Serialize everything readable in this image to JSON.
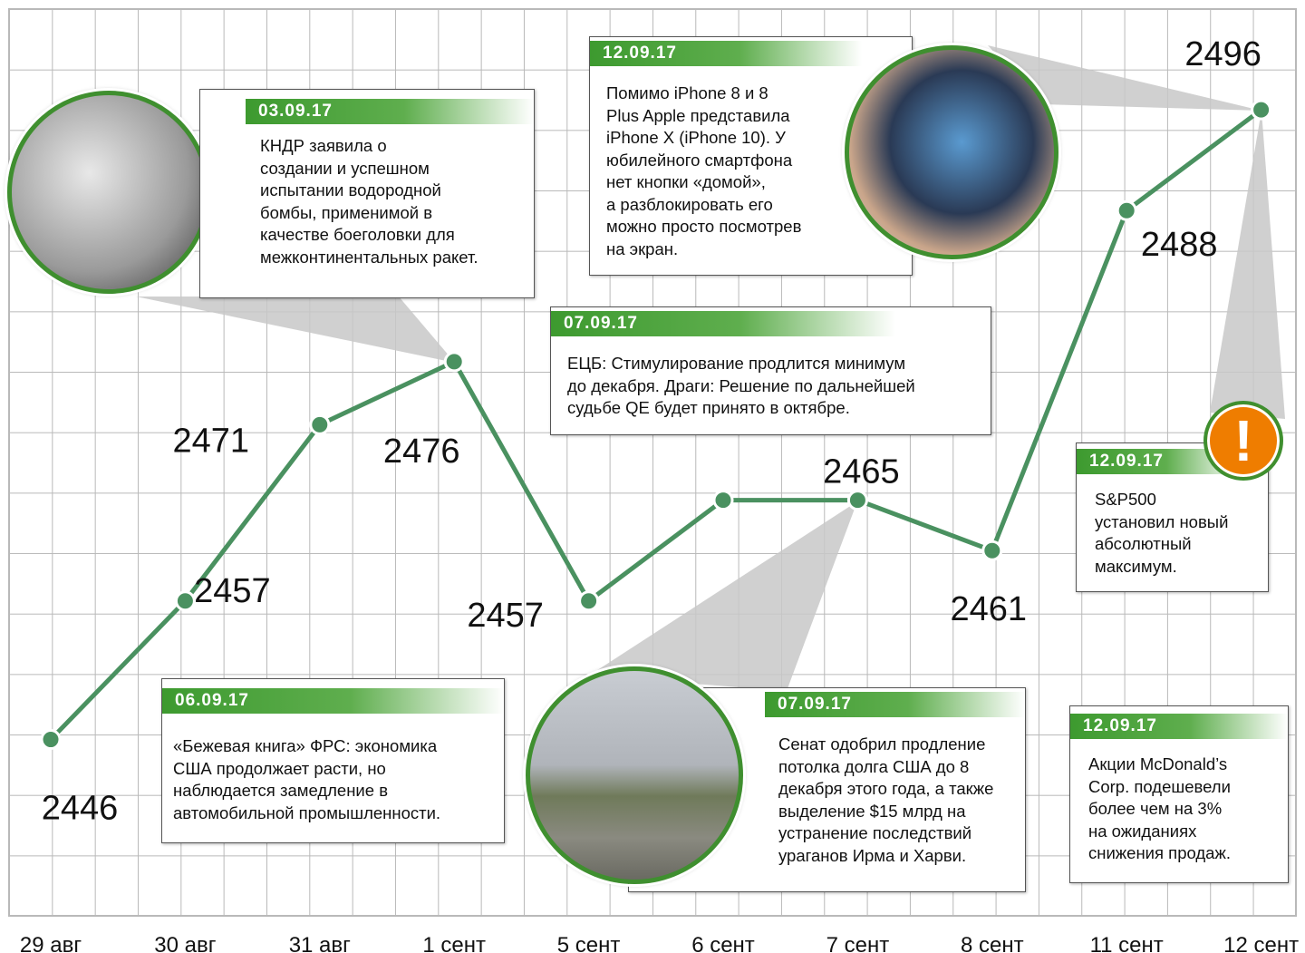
{
  "chart_data": {
    "type": "line",
    "categories": [
      "29 авг",
      "30 авг",
      "31 авг",
      "1 сент",
      "5 сент",
      "6 сент",
      "7 сент",
      "8 сент",
      "11 сент",
      "12 сент"
    ],
    "values": [
      2446,
      2457,
      2471,
      2476,
      2457,
      2465,
      2465,
      2461,
      2488,
      2496
    ],
    "value_labels": [
      "2446",
      "2457",
      "2471",
      "2476",
      "2457",
      null,
      "2465",
      "2461",
      "2488",
      "2496"
    ],
    "color": "#4a9160",
    "ylim": [
      2432,
      2504
    ],
    "grid": true,
    "annotations": [
      {
        "date": "03.09.17",
        "text": "КНДР заявила о\nсоздании и успешном\nиспытании водородной\nбомбы, применимой в\nкачестве боеголовки для\nмежконтинентальных ракет."
      },
      {
        "date": "12.09.17",
        "text": "Помимо iPhone 8 и 8\nPlus Apple представила\niPhone X (iPhone 10). У\nюбилейного смартфона\nнет кнопки «домой»,\nа разблокировать его\nможно просто посмотрев\nна экран."
      },
      {
        "date": "07.09.17",
        "text": "ЕЦБ: Стимулирование продлится минимум\nдо декабря. Драги: Решение по дальнейшей\nсудьбе QE будет принято в октябре."
      },
      {
        "date": "06.09.17",
        "text": "«Бежевая книга» ФРС: экономика\nСША продолжает расти, но\nнаблюдается замедление в\nавтомобильной промышленности."
      },
      {
        "date": "07.09.17",
        "text": "Сенат одобрил продление\nпотолка долга США до 8\nдекабря этого года, а также\nвыделение $15 млрд на\nустранение последствий\nураганов Ирма и Харви."
      },
      {
        "date": "12.09.17",
        "text": "S&P500\nустановил новый\nабсолютный\nмаксимум.",
        "icon": "!"
      },
      {
        "date": "12.09.17",
        "text": "Акции McDonald’s\nCorp. подешевели\nболее чем на 3%\nна ожиданиях\nснижения продаж."
      }
    ]
  }
}
